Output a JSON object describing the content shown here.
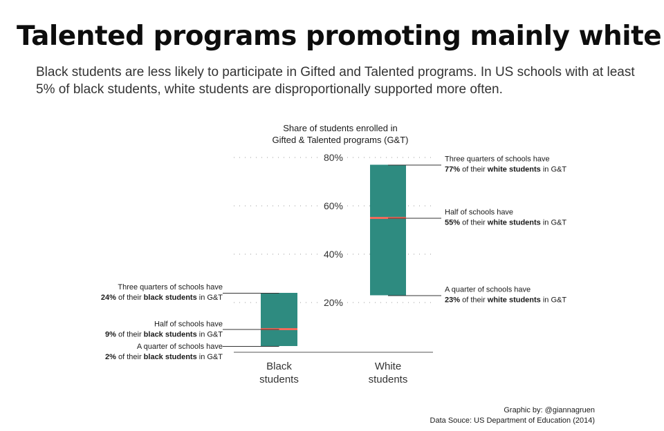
{
  "title": "Talented programs promoting mainly white",
  "subtitle": "Black students are less likely to participate in Gifted and Talented programs. In US schools with at least 5% of black students, white students are disproportionally supported more often.",
  "chart_data": {
    "type": "box",
    "axis_title_lines": [
      "Share of students enrolled in",
      "Gifted & Talented programs (G&T)"
    ],
    "ylim": [
      0,
      80
    ],
    "yticks": [
      20,
      40,
      60,
      80
    ],
    "ytick_labels": [
      "20%",
      "40%",
      "60%",
      "80%"
    ],
    "grid": "dotted",
    "colors": {
      "box": "#2e8b80",
      "median": "#f26b5b"
    },
    "categories": [
      {
        "label_lines": [
          "Black",
          "students"
        ],
        "q1": 2,
        "median": 9,
        "q3": 24,
        "annotations": {
          "q3": {
            "line1": "Three quarters of schools have",
            "pct": "24%",
            "pre": " of their ",
            "bold": "black students",
            "post": " in G&T"
          },
          "median": {
            "line1": "Half of schools have",
            "pct": "9%",
            "pre": " of their ",
            "bold": "black students",
            "post": " in G&T"
          },
          "q1": {
            "line1": "A quarter of schools have",
            "pct": "2%",
            "pre": " of their ",
            "bold": "black students",
            "post": " in G&T"
          }
        }
      },
      {
        "label_lines": [
          "White",
          "students"
        ],
        "q1": 23,
        "median": 55,
        "q3": 77,
        "annotations": {
          "q3": {
            "line1": "Three quarters of schools have",
            "pct": "77%",
            "pre": " of their ",
            "bold": "white students",
            "post": " in G&T"
          },
          "median": {
            "line1": "Half of schools have",
            "pct": "55%",
            "pre": " of their ",
            "bold": "white students",
            "post": " in G&T"
          },
          "q1": {
            "line1": "A quarter of schools have",
            "pct": "23%",
            "pre": " of their ",
            "bold": "white students",
            "post": " in G&T"
          }
        }
      }
    ]
  },
  "footer": {
    "credit": "Graphic by: @giannagruen",
    "source": "Data Souce: US Department of Education (2014)"
  }
}
